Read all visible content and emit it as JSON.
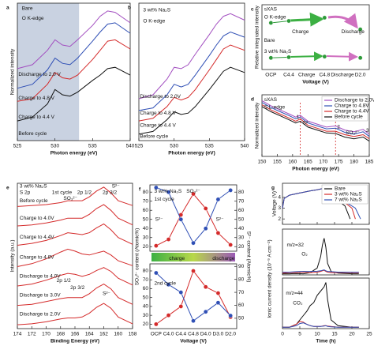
{
  "chart_data": [
    {
      "type": "line",
      "panel": "a",
      "annotations": [
        "Bare",
        "O K-edge"
      ],
      "xlabel": "Photon energy (eV)",
      "ylabel": "Normalized intensity",
      "xlim": [
        525,
        540
      ],
      "xticks": [
        525,
        530,
        535,
        540
      ],
      "ylim": [
        0,
        10.5
      ],
      "shaded_region": [
        525,
        533.2
      ],
      "shade_color": "#bcc7da",
      "legend": "inline",
      "x": [
        525,
        527,
        529,
        530,
        531,
        532,
        533,
        535,
        536,
        537,
        538,
        540
      ],
      "series": [
        {
          "name": "Discharge to 2.0 V",
          "color": "#a24ec0",
          "values": [
            5.5,
            5.8,
            6.9,
            7.7,
            7.3,
            7.2,
            7.7,
            8.8,
            9.5,
            9.9,
            9.8,
            9.0
          ]
        },
        {
          "name": "Charge to 4.8 V",
          "color": "#2f4fb5",
          "values": [
            4.0,
            4.3,
            5.4,
            6.3,
            5.9,
            5.8,
            6.3,
            7.6,
            8.3,
            8.9,
            9.0,
            8.2
          ]
        },
        {
          "name": "Charge to 4.4 V",
          "color": "#d42a2a",
          "values": [
            3.0,
            3.2,
            4.3,
            5.2,
            4.8,
            4.7,
            5.0,
            6.2,
            6.9,
            7.6,
            7.7,
            7.0
          ]
        },
        {
          "name": "Before cycle",
          "color": "#111111",
          "values": [
            1.5,
            1.8,
            2.8,
            3.9,
            3.5,
            3.4,
            3.7,
            4.6,
            5.0,
            5.5,
            5.6,
            5.0
          ]
        }
      ]
    },
    {
      "type": "line",
      "panel": "b",
      "annotations": [
        "3 wt% Na₂S",
        "O K-edge"
      ],
      "xlabel": "Photon energy (eV)",
      "xlim": [
        525,
        540
      ],
      "xticks": [
        525,
        530,
        535,
        540
      ],
      "ylim": [
        0,
        10.5
      ],
      "legend": "inline",
      "x": [
        525,
        527,
        529,
        530,
        531,
        532,
        533,
        535,
        536,
        537,
        538,
        540
      ],
      "series": [
        {
          "name": "Discharge to 2.0V",
          "color": "#a24ec0",
          "values": [
            3.2,
            3.5,
            4.7,
            5.6,
            5.5,
            5.8,
            6.6,
            8.1,
            8.9,
            9.5,
            9.7,
            9.2
          ]
        },
        {
          "name": "Charge to 4.8 V",
          "color": "#2f4fb5",
          "values": [
            2.3,
            2.5,
            3.5,
            4.3,
            4.1,
            4.3,
            5.0,
            6.5,
            7.3,
            8.0,
            8.3,
            7.9
          ]
        },
        {
          "name": "Charge to 4.4 V",
          "color": "#d42a2a",
          "values": [
            1.5,
            1.7,
            2.6,
            3.3,
            3.1,
            3.3,
            3.9,
            5.4,
            6.2,
            7.0,
            7.3,
            6.9
          ]
        },
        {
          "name": "Before cycle",
          "color": "#111111",
          "values": [
            0.5,
            0.7,
            1.6,
            2.2,
            2.0,
            2.1,
            2.6,
            3.9,
            4.6,
            5.3,
            5.6,
            5.2
          ]
        }
      ]
    },
    {
      "type": "line",
      "panel": "c",
      "annotations": [
        "sXAS",
        "O K-edge",
        "Charge",
        "Discharge"
      ],
      "xlabel": "Voltage (V)",
      "ylabel": "Relative integrated intensity",
      "categories": [
        "OCP",
        "C4.4",
        "Charge",
        "C4.8",
        "Discharge",
        "D2.0"
      ],
      "ylim": [
        0,
        1
      ],
      "markers": true,
      "legend": "inline",
      "series": [
        {
          "name": "Bare",
          "color": "#2e9a3a",
          "values": [
            0.72,
            0.75,
            null,
            0.8,
            null,
            0.62
          ]
        },
        {
          "name": "3 wt% Na₂S",
          "color": "#2e9a3a",
          "values": [
            0.18,
            0.19,
            null,
            0.2,
            null,
            0.18
          ]
        }
      ]
    },
    {
      "type": "line",
      "panel": "d",
      "annotations": [
        "sXAS",
        "S L-edge",
        "1",
        "S²⁻",
        "2",
        "SO₃²⁻",
        "3"
      ],
      "xlabel": "Photon energy (eV)",
      "ylabel": "Normalized intensity",
      "xlim": [
        150,
        185
      ],
      "xticks": [
        150,
        155,
        160,
        165,
        170,
        175,
        180,
        185
      ],
      "ylim": [
        0,
        10.5
      ],
      "marker_lines": [
        162.5,
        174
      ],
      "legend": "upper right",
      "x": [
        150,
        153,
        156,
        159,
        161,
        162.5,
        165,
        168,
        171,
        174,
        177,
        180,
        183,
        185
      ],
      "series": [
        {
          "name": "Discharge to 2.0V",
          "color": "#a24ec0",
          "values": [
            9.5,
            8.6,
            7.9,
            7.2,
            6.7,
            7.0,
            6.0,
            5.5,
            5.0,
            5.2,
            4.5,
            4.2,
            4.6,
            3.8
          ]
        },
        {
          "name": "Charge to 4.8V",
          "color": "#2f4fb5",
          "values": [
            9.2,
            8.3,
            7.6,
            6.9,
            6.4,
            6.7,
            5.7,
            5.2,
            4.7,
            4.8,
            4.1,
            3.8,
            4.2,
            3.4
          ]
        },
        {
          "name": "Charge to 4.4V",
          "color": "#d42a2a",
          "values": [
            8.8,
            7.9,
            7.2,
            6.5,
            6.0,
            6.4,
            5.3,
            4.8,
            4.3,
            4.3,
            3.7,
            3.4,
            3.7,
            3.0
          ]
        },
        {
          "name": "Before cycle",
          "color": "#111111",
          "values": [
            8.5,
            7.6,
            6.9,
            6.2,
            5.7,
            6.0,
            5.0,
            4.5,
            4.0,
            3.9,
            3.3,
            3.0,
            3.3,
            2.6
          ]
        }
      ]
    },
    {
      "type": "line",
      "panel": "e",
      "annotations": [
        "3 wt% Na₂S",
        "S 2p",
        "1st cycle",
        "SO₃²⁻",
        "2p 1/2",
        "2p 3/2",
        "S²⁻",
        "2p 1/2",
        "2p 3/2",
        "S²⁻"
      ],
      "xlabel": "Binding Energy (eV)",
      "ylabel": "Intensity (a.u.)",
      "xlim": [
        174,
        158
      ],
      "xticks": [
        174,
        172,
        170,
        168,
        166,
        164,
        162,
        160,
        158
      ],
      "ylim": [
        0,
        7.5
      ],
      "legend": "inline",
      "x": [
        174,
        172,
        170,
        168,
        167,
        166,
        165,
        164,
        163,
        162,
        161,
        160,
        158
      ],
      "series": [
        {
          "name": "Before cycle",
          "color": "#d42a2a",
          "values": [
            6.3,
            6.35,
            6.4,
            6.5,
            6.6,
            6.6,
            6.6,
            6.8,
            7.1,
            7.3,
            7.0,
            6.6,
            6.35
          ]
        },
        {
          "name": "Charge to 4.0V",
          "color": "#d42a2a",
          "values": [
            5.3,
            5.35,
            5.45,
            5.6,
            5.7,
            5.7,
            5.7,
            5.9,
            6.2,
            6.4,
            6.1,
            5.7,
            5.35
          ]
        },
        {
          "name": "Charge to 4.4V",
          "color": "#d42a2a",
          "values": [
            4.3,
            4.4,
            4.55,
            4.8,
            4.95,
            4.9,
            4.85,
            4.95,
            5.2,
            5.4,
            5.1,
            4.7,
            4.35
          ]
        },
        {
          "name": "Charge to 4.8V",
          "color": "#d42a2a",
          "values": [
            3.2,
            3.35,
            3.6,
            3.95,
            4.1,
            4.0,
            3.85,
            3.8,
            3.9,
            4.0,
            3.8,
            3.5,
            3.25
          ]
        },
        {
          "name": "Discharge to 4.0V",
          "color": "#d42a2a",
          "values": [
            2.2,
            2.3,
            2.5,
            2.75,
            2.85,
            2.8,
            2.7,
            2.8,
            3.0,
            3.15,
            2.95,
            2.6,
            2.25
          ]
        },
        {
          "name": "Discharge to 3.0V",
          "color": "#d42a2a",
          "values": [
            1.2,
            1.25,
            1.4,
            1.55,
            1.6,
            1.6,
            1.6,
            1.8,
            2.1,
            2.3,
            2.05,
            1.6,
            1.25
          ]
        },
        {
          "name": "Discharge to 2.0V",
          "color": "#d42a2a",
          "values": [
            0.2,
            0.25,
            0.35,
            0.5,
            0.55,
            0.55,
            0.6,
            0.8,
            1.1,
            1.3,
            1.05,
            0.6,
            0.25
          ]
        }
      ]
    },
    {
      "type": "line",
      "panel": "f",
      "categories": [
        "OCP",
        "C4.0",
        "C4.4",
        "C4.8",
        "D4.0",
        "D3.0",
        "D2.0"
      ],
      "xlabel": "Voltage (V)",
      "ylabel": "SO₃²⁻ content (Atomic%)",
      "y2label": "S²⁻ content (Atomic%)",
      "markers": true,
      "subplots": [
        {
          "annotations": [
            "3 wt% Na₂S",
            "1st cycle",
            "S²⁻",
            "charge",
            "discharge"
          ],
          "legend": "inline",
          "ylim": [
            15,
            88
          ],
          "yticks": [
            20,
            30,
            40,
            50,
            60,
            70,
            80
          ],
          "y2lim": [
            15,
            88
          ],
          "y2ticks": [
            20,
            30,
            40,
            50,
            60,
            70,
            80
          ],
          "series": [
            {
              "name": "SO₃²⁻",
              "color": "#d42a2a",
              "values": [
                21,
                28,
                55,
                78,
                62,
                35,
                22
              ]
            },
            {
              "name": "S²⁻",
              "color": "#2f4fb5",
              "axis": "y2",
              "values": [
                85,
                80,
                50,
                24,
                40,
                72,
                82
              ]
            }
          ]
        },
        {
          "annotations": [
            "2nd cycle"
          ],
          "ylim": [
            15,
            88
          ],
          "yticks": [
            20,
            30,
            40,
            50,
            60,
            70,
            80
          ],
          "y2lim": [
            42,
            92
          ],
          "y2ticks": [
            50,
            60,
            70,
            80,
            90
          ],
          "series": [
            {
              "color": "#d42a2a",
              "values": [
                20,
                30,
                40,
                80,
                62,
                55,
                28
              ]
            },
            {
              "color": "#2f4fb5",
              "axis": "y2",
              "values": [
                85,
                76,
                70,
                48,
                55,
                62,
                52
              ]
            }
          ]
        }
      ]
    },
    {
      "type": "line",
      "panel": "g",
      "xlim": [
        0,
        25
      ],
      "xticks": [
        0,
        5,
        10,
        15,
        20,
        25
      ],
      "xlabel": "Time (h)",
      "ylabel": "Ionic current density (10⁻⁹ A cm⁻²)",
      "subplots": [
        {
          "ylabel": "Voltage (V)",
          "ylim": [
            1.5,
            5.3
          ],
          "yticks": [
            2,
            3,
            4
          ],
          "legend": "upper right",
          "series": [
            {
              "name": "Bare",
              "color": "#111111",
              "x": [
                0,
                0.5,
                2,
                5,
                8,
                10,
                11.5,
                12,
                12.5,
                14,
                16,
                18,
                19.5
              ],
              "values": [
                3.0,
                3.9,
                4.2,
                4.4,
                4.6,
                4.7,
                4.8,
                4.8,
                4.4,
                4.1,
                3.7,
                3.2,
                2.0
              ]
            },
            {
              "name": "3 wt% Na₂S",
              "color": "#d42a2a",
              "x": [
                0,
                0.5,
                2,
                5,
                8,
                10,
                11.5,
                12,
                12.5,
                15,
                18,
                20,
                21
              ],
              "values": [
                3.0,
                3.9,
                4.2,
                4.4,
                4.6,
                4.7,
                4.8,
                4.8,
                4.4,
                4.0,
                3.5,
                3.0,
                2.0
              ]
            },
            {
              "name": "7 wt% Na₂S",
              "color": "#2f4fb5",
              "x": [
                0,
                0.5,
                2,
                5,
                8,
                10,
                11.5,
                12,
                12.5,
                15,
                18,
                21,
                22.5
              ],
              "values": [
                3.0,
                3.9,
                4.2,
                4.4,
                4.6,
                4.7,
                4.8,
                4.8,
                4.4,
                4.0,
                3.6,
                3.0,
                2.0
              ]
            }
          ]
        },
        {
          "annotations": [
            "m/z=32",
            "O₂"
          ],
          "ylim": [
            0,
            2
          ],
          "x": [
            0,
            2,
            4,
            6,
            8,
            10,
            11,
            11.5,
            12,
            12.5,
            13,
            14,
            16,
            20,
            22
          ],
          "series": [
            {
              "color": "#111111",
              "values": [
                0.05,
                0.05,
                0.06,
                0.05,
                0.1,
                0.3,
                0.8,
                1.3,
                1.6,
                1.2,
                0.5,
                0.15,
                0.08,
                0.05,
                0.05
              ]
            },
            {
              "color": "#d42a2a",
              "values": [
                0.08,
                0.1,
                0.1,
                0.12,
                0.1,
                0.12,
                0.15,
                0.18,
                0.2,
                0.15,
                0.12,
                0.1,
                0.1,
                0.1,
                0.1
              ]
            },
            {
              "color": "#2f4fb5",
              "values": [
                0.12,
                0.12,
                0.14,
                0.15,
                0.15,
                0.16,
                0.18,
                0.2,
                0.22,
                0.18,
                0.15,
                0.14,
                0.12,
                0.12,
                0.12
              ]
            }
          ]
        },
        {
          "annotations": [
            "m/z=44",
            "CO₂"
          ],
          "ylim": [
            0,
            3.5
          ],
          "x": [
            0,
            2,
            4,
            5,
            6,
            7,
            8,
            9,
            10,
            11,
            12,
            12.5,
            13,
            14,
            16,
            20,
            22
          ],
          "series": [
            {
              "color": "#111111",
              "values": [
                0.1,
                0.1,
                0.3,
                0.6,
                0.9,
                1.2,
                1.6,
                1.8,
                2.3,
                2.6,
                2.9,
                3.2,
                2.0,
                0.6,
                0.2,
                0.1,
                0.1
              ]
            },
            {
              "color": "#d42a2a",
              "values": [
                0.1,
                0.1,
                0.3,
                0.5,
                0.45,
                0.3,
                0.2,
                0.15,
                0.15,
                0.15,
                0.2,
                0.2,
                0.18,
                0.15,
                0.1,
                0.1,
                0.1
              ]
            },
            {
              "color": "#2f4fb5",
              "values": [
                0.1,
                0.1,
                0.2,
                0.35,
                0.4,
                0.3,
                0.2,
                0.15,
                0.15,
                0.15,
                0.18,
                0.2,
                0.15,
                0.12,
                0.1,
                0.1,
                0.1
              ]
            }
          ]
        }
      ]
    }
  ]
}
